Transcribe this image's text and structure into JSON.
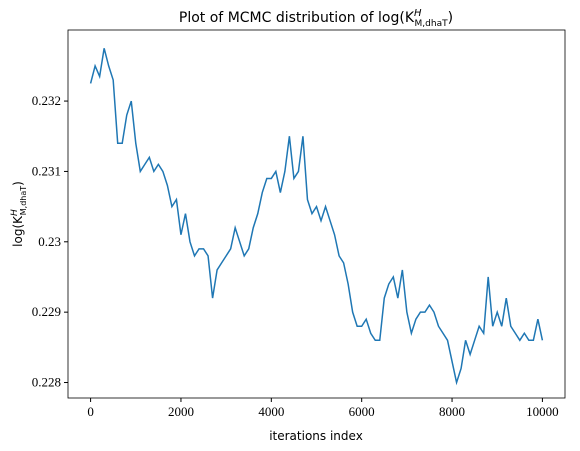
{
  "chart_data": {
    "type": "line",
    "title": {
      "text": "Plot of MCMC distribution of log(K",
      "sup": "H",
      "sub": "M,dhaT",
      "close": ")"
    },
    "xlabel": "iterations index",
    "ylabel": {
      "text": "log(K",
      "sup": "H",
      "sub": "M,dhaT",
      "close": ")"
    },
    "x": [
      0,
      100,
      200,
      300,
      400,
      500,
      600,
      700,
      800,
      900,
      1000,
      1100,
      1200,
      1300,
      1400,
      1500,
      1600,
      1700,
      1800,
      1900,
      2000,
      2100,
      2200,
      2300,
      2400,
      2500,
      2600,
      2700,
      2800,
      2900,
      3000,
      3100,
      3200,
      3300,
      3400,
      3500,
      3600,
      3700,
      3800,
      3900,
      4000,
      4100,
      4200,
      4300,
      4400,
      4500,
      4600,
      4700,
      4800,
      4900,
      5000,
      5100,
      5200,
      5300,
      5400,
      5500,
      5600,
      5700,
      5800,
      5900,
      6000,
      6100,
      6200,
      6300,
      6400,
      6500,
      6600,
      6700,
      6800,
      6900,
      7000,
      7100,
      7200,
      7300,
      7400,
      7500,
      7600,
      7700,
      7800,
      7900,
      8000,
      8100,
      8200,
      8300,
      8400,
      8500,
      8600,
      8700,
      8800,
      8900,
      9000,
      9100,
      9200,
      9300,
      9400,
      9500,
      9600,
      9700,
      9800,
      9900,
      10000
    ],
    "series": [
      {
        "color": "#1f77b4",
        "values": [
          0.23225,
          0.2325,
          0.23235,
          0.23275,
          0.2325,
          0.2323,
          0.2314,
          0.2314,
          0.2318,
          0.232,
          0.2314,
          0.231,
          0.2311,
          0.2312,
          0.231,
          0.2311,
          0.231,
          0.2308,
          0.2305,
          0.2306,
          0.2301,
          0.2304,
          0.23,
          0.2298,
          0.2299,
          0.2299,
          0.2298,
          0.2292,
          0.2296,
          0.2297,
          0.2298,
          0.2299,
          0.2302,
          0.23,
          0.2298,
          0.2299,
          0.2302,
          0.2304,
          0.2307,
          0.2309,
          0.2309,
          0.231,
          0.2307,
          0.231,
          0.2315,
          0.2309,
          0.231,
          0.2315,
          0.2306,
          0.2304,
          0.2305,
          0.2303,
          0.2305,
          0.2303,
          0.2301,
          0.2298,
          0.2297,
          0.2294,
          0.229,
          0.2288,
          0.2288,
          0.2289,
          0.2287,
          0.2286,
          0.2286,
          0.2292,
          0.2294,
          0.2295,
          0.2292,
          0.2296,
          0.229,
          0.2287,
          0.2289,
          0.229,
          0.229,
          0.2291,
          0.229,
          0.2288,
          0.2287,
          0.2286,
          0.2283,
          0.228,
          0.2282,
          0.2286,
          0.2284,
          0.2286,
          0.2288,
          0.2287,
          0.2295,
          0.2288,
          0.229,
          0.2288,
          0.2292,
          0.2288,
          0.2287,
          0.2286,
          0.2287,
          0.2286,
          0.2286,
          0.2289,
          0.2286
        ]
      }
    ],
    "xlim": [
      -500,
      10500
    ],
    "xticks": [
      0,
      2000,
      4000,
      6000,
      8000,
      10000
    ],
    "ylim": [
      0.22778,
      0.23301
    ],
    "yticks": [
      0.228,
      0.229,
      0.23,
      0.231,
      0.232
    ]
  }
}
